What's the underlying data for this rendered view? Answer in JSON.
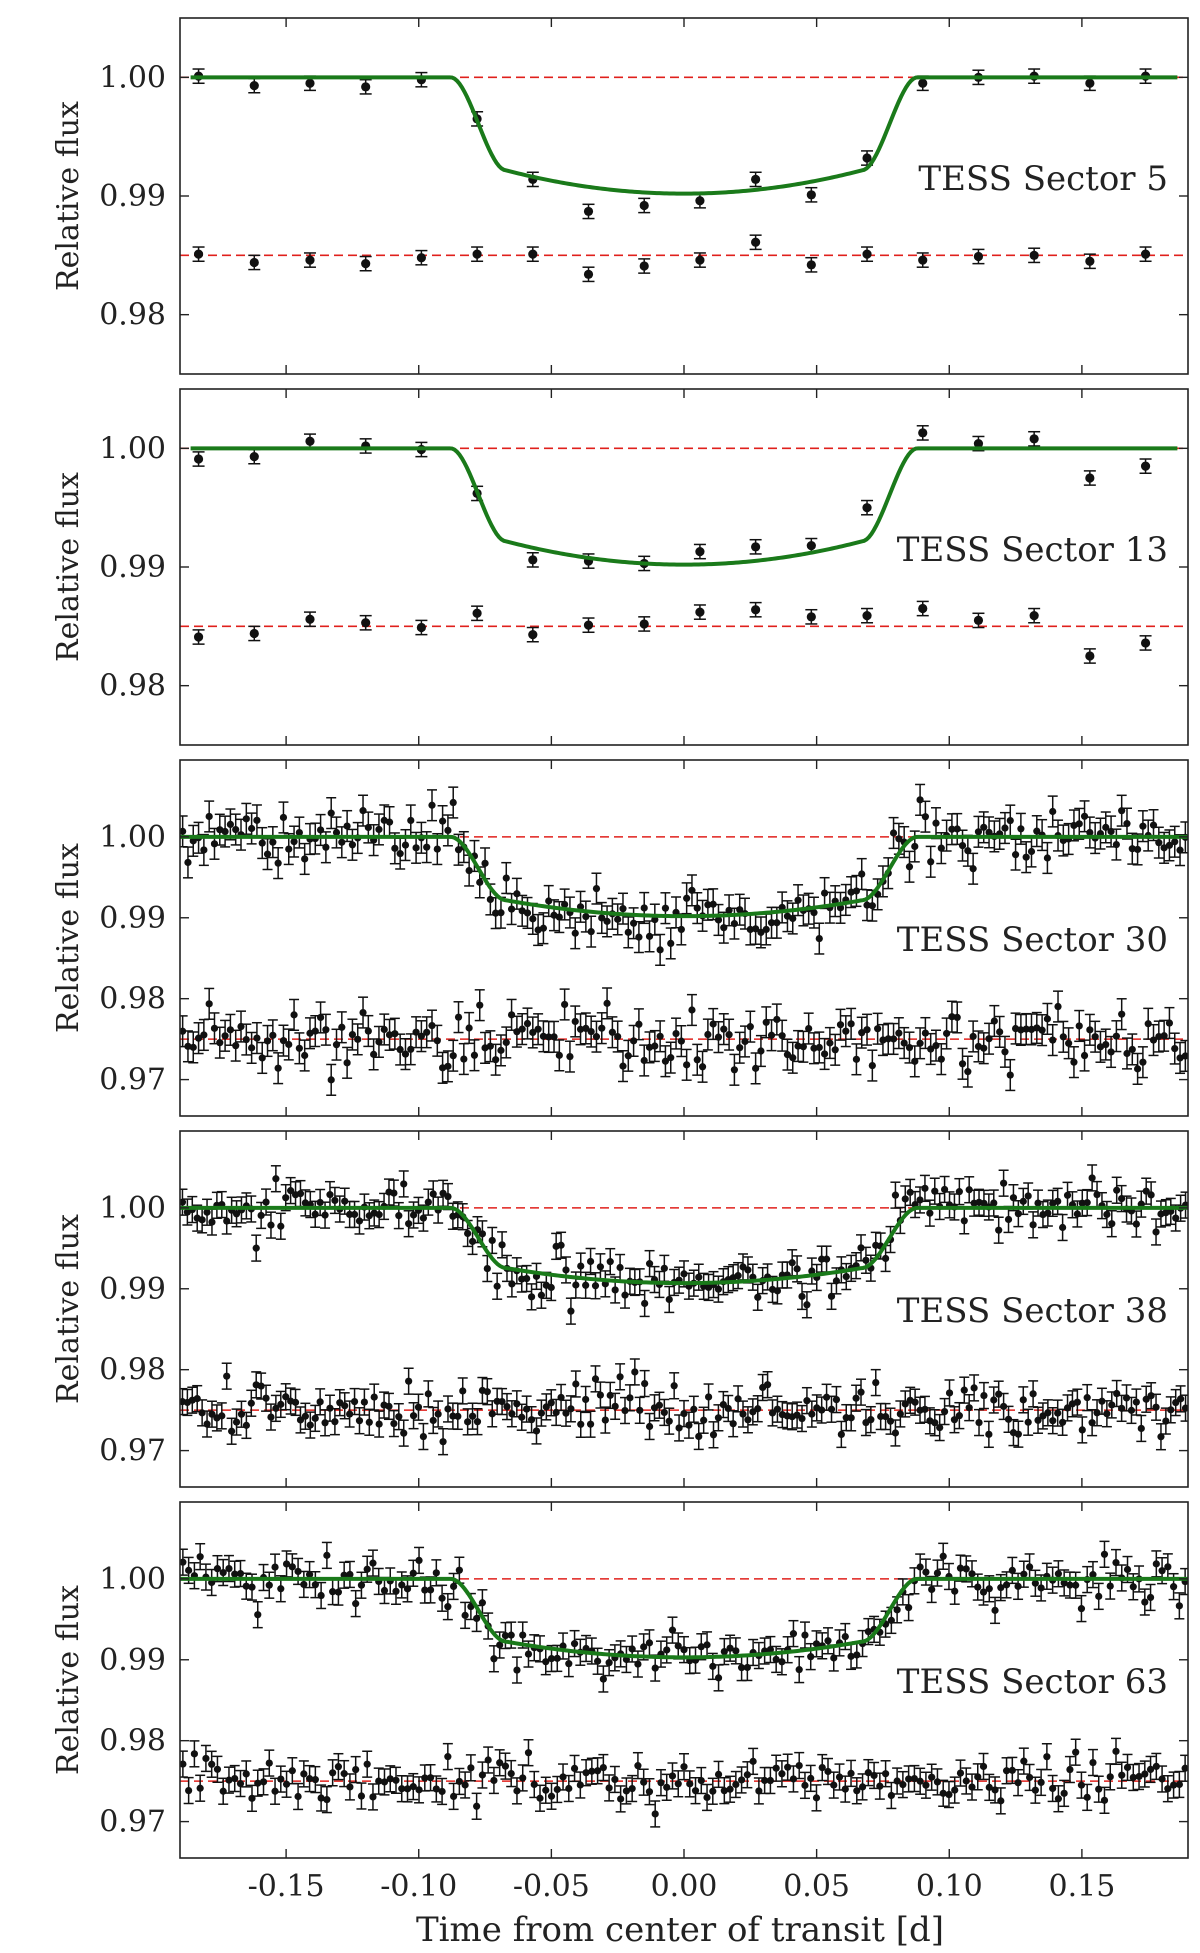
{
  "figure": {
    "xlabel": "Time from center of transit [d]",
    "ylabel": "Relative flux",
    "xlim": [
      -0.19,
      0.19
    ],
    "xticks": [
      -0.15,
      -0.1,
      -0.05,
      0.0,
      0.05,
      0.1,
      0.15
    ],
    "xtick_labels": [
      "-0.15",
      "-0.10",
      "-0.05",
      "0.00",
      "0.05",
      "0.10",
      "0.15"
    ],
    "colors": {
      "model": "#1a7a1a",
      "reference": "#e0201c",
      "points": "#111111"
    }
  },
  "chart_data": [
    {
      "type": "scatter",
      "label": "TESS Sector 5",
      "ylim": [
        0.975,
        1.005
      ],
      "yticks": [
        1.0,
        0.99,
        0.98
      ],
      "ytick_labels": [
        "1.00",
        "0.99",
        "0.98"
      ],
      "model": {
        "depth": 0.0098,
        "t_full": 0.067,
        "t_total": 0.088
      },
      "reference_lines": [
        1.0,
        0.985
      ],
      "series": [
        {
          "x": [
            -0.183,
            -0.162,
            -0.141,
            -0.12,
            -0.099,
            -0.078,
            -0.057,
            -0.036,
            -0.015,
            0.006,
            0.027,
            0.048,
            0.069,
            0.09,
            0.111,
            0.132,
            0.153,
            0.174
          ],
          "y": [
            1.0001,
            0.9993,
            0.9995,
            0.9992,
            0.9998,
            0.9965,
            0.9914,
            0.9887,
            0.9892,
            0.9896,
            0.9914,
            0.9901,
            0.9932,
            0.9995,
            1.0,
            1.0001,
            0.9995,
            1.0001
          ],
          "err": 0.0006
        },
        {
          "x": [
            -0.183,
            -0.162,
            -0.141,
            -0.12,
            -0.099,
            -0.078,
            -0.057,
            -0.036,
            -0.015,
            0.006,
            0.027,
            0.048,
            0.069,
            0.09,
            0.111,
            0.132,
            0.153,
            0.174
          ],
          "y": [
            0.9851,
            0.9844,
            0.9846,
            0.9843,
            0.9848,
            0.9851,
            0.9851,
            0.9834,
            0.9841,
            0.9846,
            0.9861,
            0.9842,
            0.9851,
            0.9846,
            0.9849,
            0.985,
            0.9845,
            0.9851
          ],
          "err": 0.0006
        }
      ]
    },
    {
      "type": "scatter",
      "label": "TESS Sector 13",
      "ylim": [
        0.975,
        1.005
      ],
      "yticks": [
        1.0,
        0.99,
        0.98
      ],
      "ytick_labels": [
        "1.00",
        "0.99",
        "0.98"
      ],
      "model": {
        "depth": 0.0098,
        "t_full": 0.067,
        "t_total": 0.088
      },
      "reference_lines": [
        1.0,
        0.985
      ],
      "series": [
        {
          "x": [
            -0.183,
            -0.162,
            -0.141,
            -0.12,
            -0.099,
            -0.078,
            -0.057,
            -0.036,
            -0.015,
            0.006,
            0.027,
            0.048,
            0.069,
            0.09,
            0.111,
            0.132,
            0.153,
            0.174
          ],
          "y": [
            0.9991,
            0.9993,
            1.0006,
            1.0002,
            0.9999,
            0.9962,
            0.9906,
            0.9905,
            0.9903,
            0.9913,
            0.9917,
            0.9918,
            0.995,
            1.0013,
            1.0004,
            1.0008,
            0.9975,
            0.9985
          ],
          "err": 0.0006
        },
        {
          "x": [
            -0.183,
            -0.162,
            -0.141,
            -0.12,
            -0.099,
            -0.078,
            -0.057,
            -0.036,
            -0.015,
            0.006,
            0.027,
            0.048,
            0.069,
            0.09,
            0.111,
            0.132,
            0.153,
            0.174
          ],
          "y": [
            0.9841,
            0.9844,
            0.9856,
            0.9853,
            0.9849,
            0.9861,
            0.9843,
            0.9851,
            0.9852,
            0.9862,
            0.9864,
            0.9858,
            0.9859,
            0.9865,
            0.9855,
            0.9859,
            0.9825,
            0.9836
          ],
          "err": 0.0006
        }
      ]
    },
    {
      "type": "scatter",
      "label": "TESS Sector 30",
      "ylim": [
        0.9655,
        1.0095
      ],
      "yticks": [
        1.0,
        0.99,
        0.98,
        0.97
      ],
      "ytick_labels": [
        "1.00",
        "0.99",
        "0.98",
        "0.97"
      ],
      "model": {
        "depth": 0.0098,
        "t_full": 0.067,
        "t_total": 0.088
      },
      "reference_lines": [
        1.0,
        0.975
      ],
      "dense": {
        "n": 190,
        "sigma": 0.0018,
        "err": 0.0019,
        "seed": 30,
        "offset": 0.025
      }
    },
    {
      "type": "scatter",
      "label": "TESS Sector 38",
      "ylim": [
        0.9655,
        1.0095
      ],
      "yticks": [
        1.0,
        0.99,
        0.98,
        0.97
      ],
      "ytick_labels": [
        "1.00",
        "0.99",
        "0.98",
        "0.97"
      ],
      "model": {
        "depth": 0.0093,
        "t_full": 0.067,
        "t_total": 0.088
      },
      "reference_lines": [
        1.0,
        0.975
      ],
      "dense": {
        "n": 205,
        "sigma": 0.0015,
        "err": 0.0016,
        "seed": 38,
        "offset": 0.025
      }
    },
    {
      "type": "scatter",
      "label": "TESS Sector 63",
      "ylim": [
        0.9655,
        1.0095
      ],
      "yticks": [
        1.0,
        0.99,
        0.98,
        0.97
      ],
      "ytick_labels": [
        "1.00",
        "0.99",
        "0.98",
        "0.97"
      ],
      "model": {
        "depth": 0.0097,
        "t_full": 0.067,
        "t_total": 0.088
      },
      "reference_lines": [
        1.0,
        0.975
      ],
      "dense": {
        "n": 175,
        "sigma": 0.0014,
        "err": 0.0016,
        "seed": 63,
        "offset": 0.025
      }
    }
  ]
}
